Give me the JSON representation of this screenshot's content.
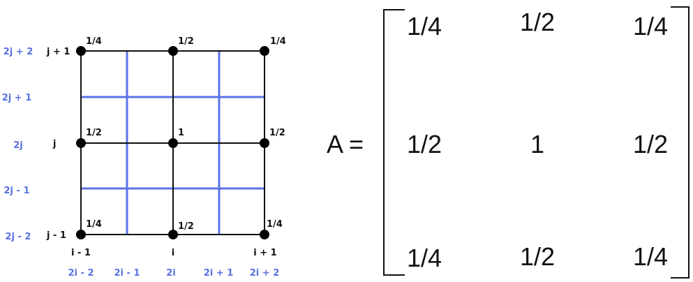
{
  "grid": {
    "coarse_x_labels": [
      "i - 1",
      "i",
      "i + 1"
    ],
    "coarse_y_labels": [
      "j + 1",
      "j",
      "j - 1"
    ],
    "fine_x_labels": [
      "2i - 2",
      "2i - 1",
      "2i",
      "2i + 1",
      "2i + 2"
    ],
    "fine_y_labels": [
      "2j + 2",
      "2j + 1",
      "2j",
      "2j - 1",
      "2j - 2"
    ],
    "node_weights": [
      [
        "1/4",
        "1/2",
        "1/4"
      ],
      [
        "1/2",
        "1",
        "1/2"
      ],
      [
        "1/4",
        "1/2",
        "1/4"
      ]
    ],
    "colors": {
      "coarse_line": "#111111",
      "fine_line": "#5b72e6",
      "label_blue": "#5870e0"
    }
  },
  "matrix": {
    "lhs": "A =",
    "rows": [
      [
        "1/4",
        "1/2",
        "1/4"
      ],
      [
        "1/2",
        "1",
        "1/2"
      ],
      [
        "1/4",
        "1/2",
        "1/4"
      ]
    ]
  }
}
